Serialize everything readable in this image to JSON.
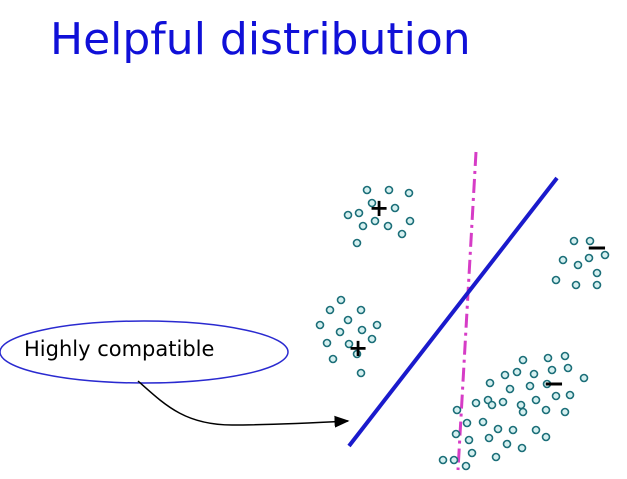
{
  "title": "Helpful distribution",
  "callout": {
    "label": "Highly compatible"
  },
  "class_markers": {
    "positive": "+",
    "negative": "−"
  },
  "colors": {
    "title": "#1010d8",
    "separator_solid": "#1a1acc",
    "separator_dashdot": "#d63cc6",
    "point_stroke": "#1b6e78",
    "point_fill": "#d6f0f0",
    "callout_border": "#2a2ad0"
  }
}
